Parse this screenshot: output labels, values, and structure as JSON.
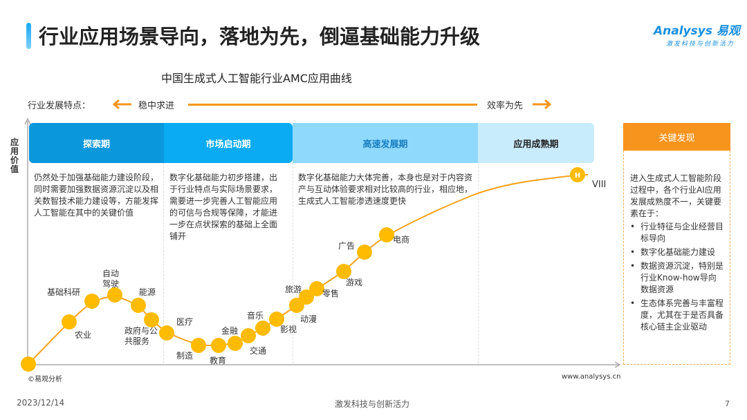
{
  "header": {
    "title": "行业应用场景导向，落地为先，倒逼基础能力升级",
    "logo": "Analysys 易观",
    "slogan": "激发科技与创新活力"
  },
  "chart_title": "中国生成式人工智能行业AMC应用曲线",
  "features": {
    "label": "行业发展特点：",
    "left": "稳中求进",
    "right": "效率为先"
  },
  "y_axis_label": "应用价值",
  "phases": [
    {
      "name": "探索期",
      "color": "#0b97dc",
      "desc": "仍然处于加强基础能力建设阶段，同时需要加强数据资源沉淀以及相关数智技术能力建设等，方能发挥人工智能在其中的关键价值"
    },
    {
      "name": "市场启动期",
      "color": "#0aabf2",
      "desc": "数字化基础能力初步搭建，出于行业特点与实际场景要求，需要进一步完善人工智能应用的可信与合规等保障，才能进一步在点状探索的基础上全面铺开"
    },
    {
      "name": "高速发展期",
      "color": "#8fd9fd",
      "desc": "数字化基础能力大体完善，本身也是对于内容资产与互动体验要求相对比较高的行业，相应地，生成式人工智能渗透速度更快"
    },
    {
      "name": "应用成熟期",
      "color": "#c9ecfd",
      "desc": ""
    }
  ],
  "industries": [
    "",
    "农业",
    "基础科研",
    "自动驾驶",
    "能源",
    "政府与公共服务",
    "医疗",
    "制造",
    "教育",
    "金融",
    "交通",
    "音乐",
    "影视",
    "动漫",
    "旅游",
    "零售",
    "游戏",
    "广告",
    "电商"
  ],
  "end_marker": {
    "badge": "H",
    "label": "VIII"
  },
  "curve_color": "#f7a21b",
  "dot_color": "#ffbb00",
  "key_findings": {
    "title": "关键发现",
    "intro": "进入生成式人工智能阶段过程中，各个行业AI应用发展成熟度不一，关键要素在于：",
    "items": [
      "行业特征与企业经营目标导向",
      "数字化基础能力建设",
      "数据资源沉淀，特别是行业Know-how导向数据资源",
      "生态体系完善与丰富程度，尤其在于是否具备核心链主企业驱动"
    ]
  },
  "footer": {
    "source": "©易观分析",
    "site": "www.analysys.cn",
    "date": "2023/12/14",
    "slogan": "激发科技与创新活力",
    "page": "7"
  }
}
